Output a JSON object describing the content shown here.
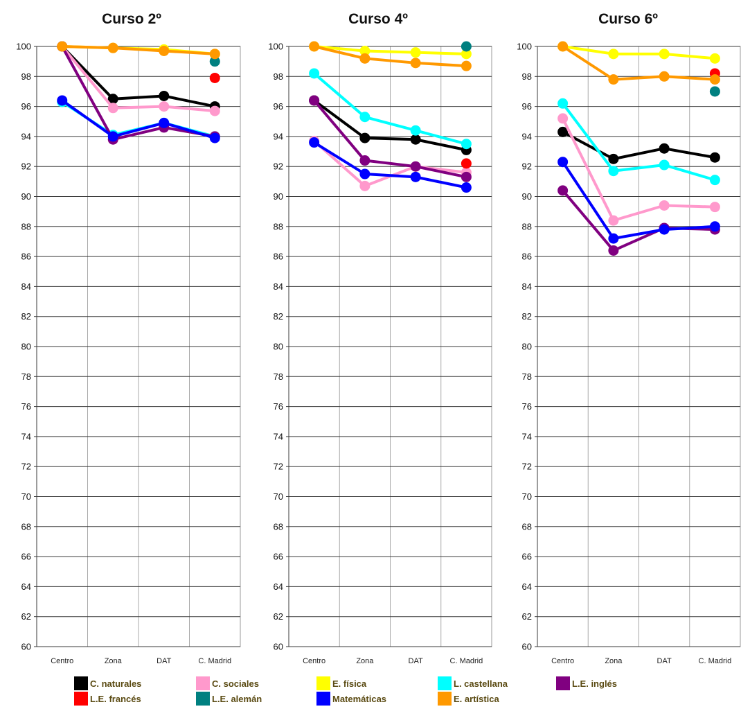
{
  "chart_data": [
    {
      "type": "line",
      "title": "Curso 2º",
      "categories": [
        "Centro",
        "Zona",
        "DAT",
        "C. Madrid"
      ],
      "ylim": [
        60,
        100
      ],
      "yticks": [
        "60",
        "62",
        "64",
        "66",
        "68",
        "70",
        "72",
        "74",
        "76",
        "78",
        "80",
        "82",
        "84",
        "86",
        "88",
        "90",
        "92",
        "94",
        "96",
        "98",
        "100"
      ],
      "grid": true,
      "series": [
        {
          "name": "C. naturales",
          "color": "#000000",
          "values": [
            100,
            96.5,
            96.7,
            96.0
          ]
        },
        {
          "name": "C. sociales",
          "color": "#ff99cc",
          "values": [
            100,
            95.9,
            96.0,
            95.7
          ]
        },
        {
          "name": "E. física",
          "color": "#ffff00",
          "values": [
            100,
            99.9,
            99.8,
            99.5
          ]
        },
        {
          "name": "L. castellana",
          "color": "#00ffff",
          "values": [
            96.3,
            94.1,
            94.9,
            94.0
          ]
        },
        {
          "name": "L.E. inglés",
          "color": "#800080",
          "values": [
            100,
            93.8,
            94.6,
            94.0
          ]
        },
        {
          "name": "L.E. francés",
          "color": "#ff0000",
          "values": [
            null,
            null,
            null,
            97.9
          ]
        },
        {
          "name": "L.E. alemán",
          "color": "#008080",
          "values": [
            null,
            null,
            null,
            99.0
          ]
        },
        {
          "name": "Matemáticas",
          "color": "#0000ff",
          "values": [
            96.4,
            94.0,
            94.9,
            93.9
          ]
        },
        {
          "name": "E. artística",
          "color": "#ff9900",
          "values": [
            100,
            99.9,
            99.7,
            99.5
          ]
        }
      ]
    },
    {
      "type": "line",
      "title": "Curso 4º",
      "categories": [
        "Centro",
        "Zona",
        "DAT",
        "C. Madrid"
      ],
      "ylim": [
        60,
        100
      ],
      "yticks": [
        "60",
        "62",
        "64",
        "66",
        "68",
        "70",
        "72",
        "74",
        "76",
        "78",
        "80",
        "82",
        "84",
        "86",
        "88",
        "90",
        "92",
        "94",
        "96",
        "98",
        "100"
      ],
      "grid": true,
      "series": [
        {
          "name": "C. naturales",
          "color": "#000000",
          "values": [
            96.4,
            93.9,
            93.8,
            93.1
          ]
        },
        {
          "name": "C. sociales",
          "color": "#ff99cc",
          "values": [
            93.7,
            90.7,
            92.0,
            91.6
          ]
        },
        {
          "name": "E. física",
          "color": "#ffff00",
          "values": [
            100,
            99.7,
            99.6,
            99.5
          ]
        },
        {
          "name": "L. castellana",
          "color": "#00ffff",
          "values": [
            98.2,
            95.3,
            94.4,
            93.5
          ]
        },
        {
          "name": "L.E. inglés",
          "color": "#800080",
          "values": [
            96.4,
            92.4,
            92.0,
            91.3
          ]
        },
        {
          "name": "L.E. francés",
          "color": "#ff0000",
          "values": [
            null,
            null,
            null,
            92.2
          ]
        },
        {
          "name": "L.E. alemán",
          "color": "#008080",
          "values": [
            null,
            null,
            null,
            100
          ]
        },
        {
          "name": "Matemáticas",
          "color": "#0000ff",
          "values": [
            93.6,
            91.5,
            91.3,
            90.6
          ]
        },
        {
          "name": "E. artística",
          "color": "#ff9900",
          "values": [
            100,
            99.2,
            98.9,
            98.7
          ]
        }
      ]
    },
    {
      "type": "line",
      "title": "Curso 6º",
      "categories": [
        "Centro",
        "Zona",
        "DAT",
        "C. Madrid"
      ],
      "ylim": [
        60,
        100
      ],
      "yticks": [
        "60",
        "62",
        "64",
        "66",
        "68",
        "70",
        "72",
        "74",
        "76",
        "78",
        "80",
        "82",
        "84",
        "86",
        "88",
        "90",
        "92",
        "94",
        "96",
        "98",
        "100"
      ],
      "grid": true,
      "series": [
        {
          "name": "C. naturales",
          "color": "#000000",
          "values": [
            94.3,
            92.5,
            93.2,
            92.6
          ]
        },
        {
          "name": "C. sociales",
          "color": "#ff99cc",
          "values": [
            95.2,
            88.4,
            89.4,
            89.3
          ]
        },
        {
          "name": "E. física",
          "color": "#ffff00",
          "values": [
            100,
            99.5,
            99.5,
            99.2
          ]
        },
        {
          "name": "L. castellana",
          "color": "#00ffff",
          "values": [
            96.2,
            91.7,
            92.1,
            91.1
          ]
        },
        {
          "name": "L.E. inglés",
          "color": "#800080",
          "values": [
            90.4,
            86.4,
            87.9,
            87.8
          ]
        },
        {
          "name": "L.E. francés",
          "color": "#ff0000",
          "values": [
            null,
            null,
            null,
            98.2
          ]
        },
        {
          "name": "L.E. alemán",
          "color": "#008080",
          "values": [
            null,
            null,
            null,
            97.0
          ]
        },
        {
          "name": "Matemáticas",
          "color": "#0000ff",
          "values": [
            92.3,
            87.2,
            87.8,
            88.0
          ]
        },
        {
          "name": "E. artística",
          "color": "#ff9900",
          "values": [
            100,
            97.8,
            98.0,
            97.8
          ]
        }
      ]
    }
  ],
  "legend": {
    "placement": "bottom",
    "items": [
      {
        "label": "C. naturales",
        "color": "#000000"
      },
      {
        "label": "C. sociales",
        "color": "#ff99cc"
      },
      {
        "label": "E. física",
        "color": "#ffff00"
      },
      {
        "label": "L. castellana",
        "color": "#00ffff"
      },
      {
        "label": "L.E. inglés",
        "color": "#800080"
      },
      {
        "label": "L.E. francés",
        "color": "#ff0000"
      },
      {
        "label": "L.E. alemán",
        "color": "#008080"
      },
      {
        "label": "Matemáticas",
        "color": "#0000ff"
      },
      {
        "label": "E. artística",
        "color": "#ff9900"
      }
    ]
  }
}
